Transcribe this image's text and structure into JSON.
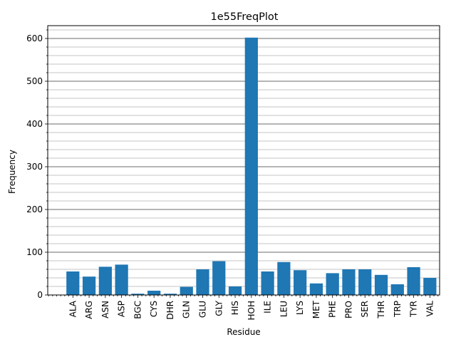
{
  "chart_data": {
    "type": "bar",
    "title": "1e55FreqPlot",
    "xlabel": "Residue",
    "ylabel": "Frequency",
    "categories": [
      "ALA",
      "ARG",
      "ASN",
      "ASP",
      "BGC",
      "CYS",
      "DHR",
      "GLN",
      "GLU",
      "GLY",
      "HIS",
      "HOH",
      "ILE",
      "LEU",
      "LYS",
      "MET",
      "PHE",
      "PRO",
      "SER",
      "THR",
      "TRP",
      "TYR",
      "VAL"
    ],
    "values": [
      55,
      43,
      66,
      71,
      3,
      10,
      3,
      19,
      60,
      79,
      20,
      602,
      55,
      77,
      58,
      27,
      51,
      60,
      60,
      47,
      25,
      65,
      40
    ],
    "ylim": [
      0,
      630
    ],
    "yticks": [
      0,
      100,
      200,
      300,
      400,
      500,
      600
    ],
    "minor_ystep": 20,
    "grid": "major and minor, y-axis",
    "bar_color": "#1f77b4"
  }
}
